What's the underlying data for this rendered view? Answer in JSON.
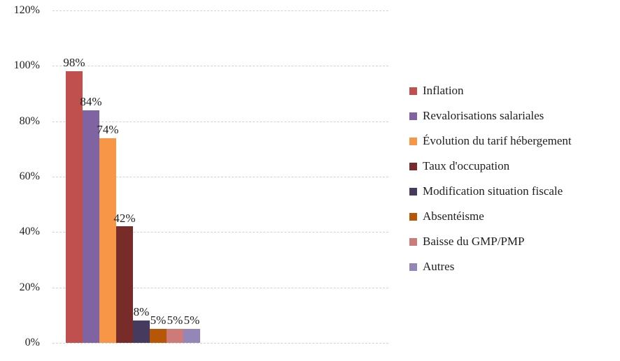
{
  "chart_data": {
    "type": "bar",
    "title": "",
    "xlabel": "",
    "ylabel": "",
    "ylim": [
      0,
      120
    ],
    "value_suffix": "%",
    "grid": true,
    "legend_position": "right",
    "y_ticks_top_to_bottom": [
      "120%",
      "100%",
      "80%",
      "60%",
      "40%",
      "20%",
      "0%"
    ],
    "categories": [
      ""
    ],
    "series": [
      {
        "name": "Inflation",
        "value": 98,
        "label": "98%",
        "color": "#C0504D"
      },
      {
        "name": "Revalorisations salariales",
        "value": 84,
        "label": "84%",
        "color": "#8064A2"
      },
      {
        "name": "Évolution du tarif hébergement",
        "value": 74,
        "label": "74%",
        "color": "#F79646"
      },
      {
        "name": "Taux d'occupation",
        "value": 42,
        "label": "42%",
        "color": "#772C2A"
      },
      {
        "name": "Modification situation fiscale",
        "value": 8,
        "label": "8%",
        "color": "#473A5F"
      },
      {
        "name": "Absentéisme",
        "value": 5,
        "label": "5%",
        "color": "#B65708"
      },
      {
        "name": "Baisse du GMP/PMP",
        "value": 5,
        "label": "5%",
        "color": "#CC7B78"
      },
      {
        "name": "Autres",
        "value": 5,
        "label": "5%",
        "color": "#9487B8"
      }
    ]
  }
}
